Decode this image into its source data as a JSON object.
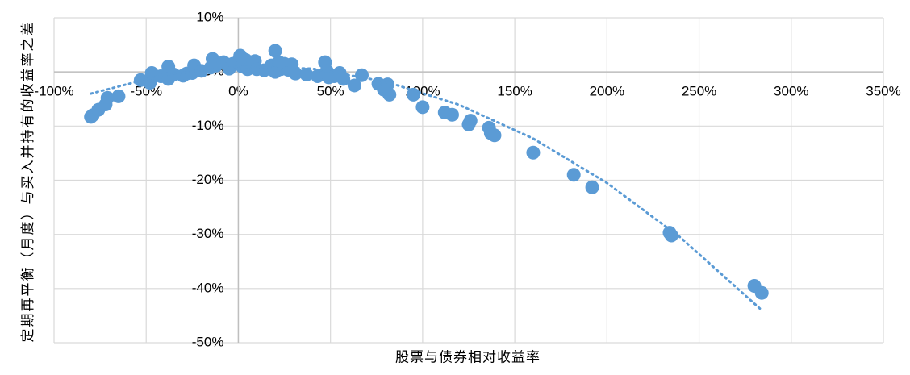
{
  "chart_data": {
    "type": "scatter",
    "x_label": "股票与债券相对收益率",
    "y_label": "定期再平衡（月度）与买入并持有的收益率之差",
    "xlim": [
      -100,
      350
    ],
    "ylim": [
      -50,
      10
    ],
    "xticks": [
      {
        "value": -100,
        "label": "-100%"
      },
      {
        "value": -50,
        "label": "-50%"
      },
      {
        "value": 0,
        "label": "0%"
      },
      {
        "value": 50,
        "label": "50%"
      },
      {
        "value": 100,
        "label": "100%"
      },
      {
        "value": 150,
        "label": "150%"
      },
      {
        "value": 200,
        "label": "200%"
      },
      {
        "value": 250,
        "label": "250%"
      },
      {
        "value": 300,
        "label": "300%"
      },
      {
        "value": 350,
        "label": "350%"
      }
    ],
    "yticks": [
      {
        "value": 10,
        "label": "10%"
      },
      {
        "value": 0,
        "label": "0%"
      },
      {
        "value": -10,
        "label": "-10%"
      },
      {
        "value": -20,
        "label": "-20%"
      },
      {
        "value": -30,
        "label": "-30%"
      },
      {
        "value": -40,
        "label": "-40%"
      },
      {
        "value": -50,
        "label": "-50%"
      }
    ],
    "grid": true,
    "series": [
      {
        "color": "#5b9bd5",
        "x": [
          -80,
          -79,
          -76,
          -72,
          -71,
          -65,
          -53,
          -48,
          -47,
          -42,
          -38,
          -38,
          -35,
          -30,
          -28,
          -25,
          -24,
          -20,
          -15,
          -14,
          -12,
          -8,
          -5,
          -3,
          0,
          1,
          2,
          4,
          5,
          8,
          9,
          10,
          14,
          18,
          20,
          20,
          22,
          23,
          25,
          27,
          29,
          31,
          37,
          43,
          47,
          48,
          49,
          52,
          55,
          57,
          63,
          67,
          76,
          79,
          81,
          82,
          95,
          100,
          112,
          116,
          125,
          126,
          136,
          137,
          139,
          160,
          182,
          192,
          234,
          235,
          280,
          284
        ],
        "values": [
          -8.3,
          -8,
          -7,
          -6,
          -4.8,
          -4.5,
          -1.5,
          -2,
          -0.2,
          -0.8,
          1,
          -1.3,
          -0.5,
          -0.7,
          -0.3,
          -0.2,
          1.2,
          0.2,
          0.8,
          2.4,
          1.2,
          1.8,
          0.6,
          1.5,
          2,
          3,
          1,
          2.2,
          0.5,
          1.5,
          2,
          0.5,
          0.3,
          1.2,
          0,
          3.9,
          1.8,
          0.5,
          1.5,
          0.4,
          1.4,
          -0.3,
          -0.5,
          -0.8,
          1.8,
          0.2,
          -1,
          -0.8,
          -0.2,
          -1.3,
          -2.5,
          -0.6,
          -2.2,
          -3.3,
          -2.3,
          -4.2,
          -4.2,
          -6.5,
          -7.5,
          -7.9,
          -9.7,
          -9,
          -10.3,
          -11.3,
          -11.7,
          -14.9,
          -19,
          -21.3,
          -29.7,
          -30.2,
          -39.5,
          -40.8
        ]
      }
    ],
    "trendline": {
      "color": "#5b9bd5",
      "x": [
        -80,
        -40,
        0,
        40,
        80,
        120,
        160,
        200,
        240,
        284
      ],
      "values": [
        -4,
        -0.5,
        1,
        0.6,
        -1.8,
        -6.1,
        -12.3,
        -20.5,
        -30.6,
        -44
      ]
    }
  }
}
